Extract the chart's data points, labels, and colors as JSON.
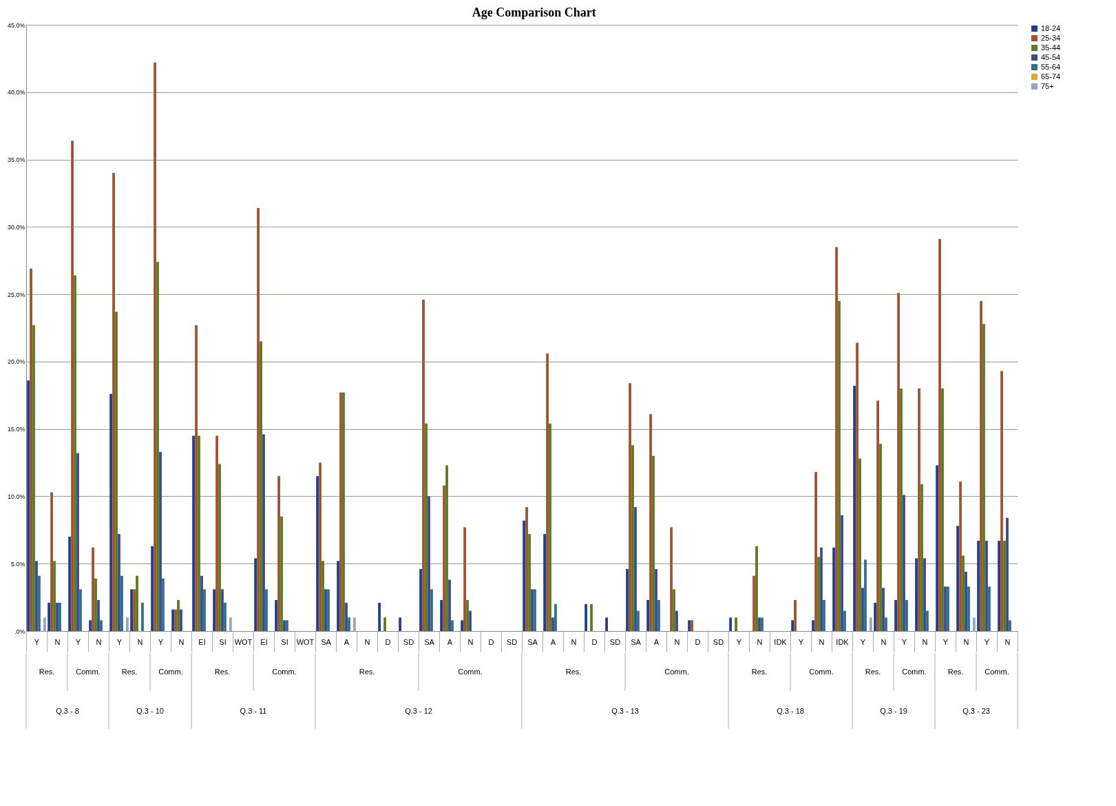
{
  "chart_data": {
    "type": "bar",
    "title": "Age Comparison Chart",
    "categories": [
      "Y",
      "N",
      "Y",
      "N",
      "Y",
      "N",
      "Y",
      "N",
      "EI",
      "SI",
      "WOT",
      "EI",
      "SI",
      "WOT",
      "SA",
      "A",
      "N",
      "D",
      "SD",
      "SA",
      "A",
      "N",
      "D",
      "SD",
      "SA",
      "A",
      "N",
      "D",
      "SD",
      "SA",
      "A",
      "N",
      "D",
      "SD",
      "Y",
      "N",
      "IDK",
      "Y",
      "N",
      "IDK",
      "Y",
      "N",
      "Y",
      "N",
      "Y",
      "N",
      "Y",
      "N"
    ],
    "annotations": [
      "Res.",
      "Comm.",
      "Q.3 - 8",
      "Res.",
      "Comm.",
      "Q.3 - 10",
      "Res.",
      "Comm.",
      "Q.3 - 11",
      "Res.",
      "Comm.",
      "Q.3 - 12",
      "Res.",
      "Comm.",
      "Q.3 - 13",
      "Res.",
      "Comm.",
      "Q.3 - 18",
      "Res.",
      "Comm.",
      "Q.3 - 19",
      "Res.",
      "Comm.",
      "Q.3 - 23"
    ],
    "series": [
      {
        "name": "18-24",
        "color": "#1f3f8f",
        "values": [
          18.6,
          2.1,
          7.0,
          0.8,
          17.6,
          3.1,
          6.3,
          1.6,
          14.5,
          3.1,
          0,
          5.4,
          2.3,
          0,
          11.5,
          5.2,
          0,
          2.1,
          1.0,
          4.6,
          2.3,
          0.8,
          0,
          0,
          8.2,
          7.2,
          0,
          2.0,
          1.0,
          4.6,
          2.3,
          0,
          0.8,
          0,
          1.0,
          0,
          0,
          0.8,
          0.8,
          6.2,
          18.2,
          2.1,
          2.3,
          5.4,
          12.3,
          7.8,
          6.7,
          6.7
        ]
      },
      {
        "name": "25-34",
        "color": "#a0522d",
        "values": [
          26.9,
          10.3,
          36.4,
          6.2,
          34.0,
          3.1,
          42.2,
          1.6,
          22.7,
          14.5,
          0,
          31.4,
          11.5,
          0,
          12.5,
          17.7,
          0,
          0,
          0,
          24.6,
          10.8,
          7.7,
          0,
          0,
          9.2,
          20.6,
          0,
          0,
          0,
          18.4,
          16.1,
          7.7,
          0.8,
          0,
          0,
          4.1,
          0,
          2.3,
          11.8,
          28.5,
          21.4,
          17.1,
          25.1,
          18.0,
          29.1,
          11.1,
          24.5,
          19.3
        ]
      },
      {
        "name": "35-44",
        "color": "#5b7a1e",
        "values": [
          22.7,
          5.2,
          26.4,
          3.9,
          23.7,
          4.1,
          27.4,
          2.3,
          14.5,
          12.4,
          0,
          21.5,
          8.5,
          0,
          5.2,
          17.7,
          0,
          1.0,
          0,
          15.4,
          12.3,
          2.3,
          0,
          0,
          7.2,
          15.4,
          0,
          2.0,
          0,
          13.8,
          13.0,
          3.1,
          0,
          0,
          1.0,
          6.3,
          0,
          0,
          5.5,
          24.5,
          12.8,
          13.9,
          18.0,
          10.9,
          18.0,
          5.6,
          22.8,
          6.7
        ]
      },
      {
        "name": "45-54",
        "color": "#3a4a8a",
        "values": [
          5.2,
          2.1,
          13.2,
          2.3,
          7.2,
          0,
          13.3,
          1.6,
          4.1,
          3.1,
          0,
          14.6,
          0.8,
          0,
          3.1,
          2.1,
          0,
          0,
          0,
          10.0,
          3.8,
          1.5,
          0,
          0,
          3.1,
          1.0,
          0,
          0,
          0,
          9.2,
          4.6,
          1.5,
          0,
          0,
          0,
          1.0,
          0,
          0,
          6.2,
          8.6,
          3.2,
          3.2,
          10.1,
          5.4,
          3.3,
          4.4,
          6.7,
          8.4
        ]
      },
      {
        "name": "55-64",
        "color": "#2f6e8e",
        "values": [
          4.1,
          2.1,
          3.1,
          0.8,
          4.1,
          2.1,
          3.9,
          0,
          3.1,
          2.1,
          0,
          3.1,
          0.8,
          0,
          3.1,
          1.0,
          0,
          0,
          0,
          3.1,
          0.8,
          0,
          0,
          0,
          3.1,
          2.0,
          0,
          0,
          0,
          1.5,
          2.3,
          0,
          0,
          0,
          0,
          1.0,
          0,
          0,
          2.3,
          1.5,
          5.3,
          1.0,
          2.3,
          1.5,
          3.3,
          3.3,
          3.3,
          0.8
        ]
      },
      {
        "name": "65-74",
        "color": "#e8a33a",
        "values": [
          0,
          0,
          0,
          0,
          0,
          0,
          0,
          0,
          0,
          0,
          0,
          0,
          0,
          0,
          0,
          0,
          0,
          0,
          0,
          0,
          0,
          0,
          0,
          0,
          0,
          0,
          0,
          0,
          0,
          0,
          0,
          0,
          0,
          0,
          0,
          0,
          0,
          0,
          0,
          0,
          0,
          0,
          0,
          0,
          0,
          0,
          0,
          0
        ]
      },
      {
        "name": "75+",
        "color": "#8fa8c8",
        "values": [
          1.0,
          0,
          0,
          0,
          1.0,
          0,
          0,
          0,
          0,
          1.0,
          0,
          0,
          0,
          0,
          0,
          1.0,
          0,
          0,
          0,
          0,
          0,
          0,
          0,
          0,
          0,
          0,
          0,
          0,
          0,
          0,
          0,
          0,
          0,
          0,
          0,
          0,
          0,
          0,
          0,
          0,
          1.0,
          0,
          0,
          0,
          0,
          1.0,
          0,
          0
        ]
      }
    ],
    "ylim": [
      0,
      45
    ],
    "yticks": [
      {
        "value": 0,
        "label": ".0%"
      },
      {
        "value": 5,
        "label": "5.0%"
      },
      {
        "value": 10,
        "label": "10.0%"
      },
      {
        "value": 15,
        "label": "15.0%"
      },
      {
        "value": 20,
        "label": "20.0%"
      },
      {
        "value": 25,
        "label": "25.0%"
      },
      {
        "value": 30,
        "label": "30.0%"
      },
      {
        "value": 35,
        "label": "35.0%"
      },
      {
        "value": 40,
        "label": "40.0%"
      },
      {
        "value": 45,
        "label": "45.0%"
      }
    ],
    "grid": "y",
    "legend": "right"
  }
}
